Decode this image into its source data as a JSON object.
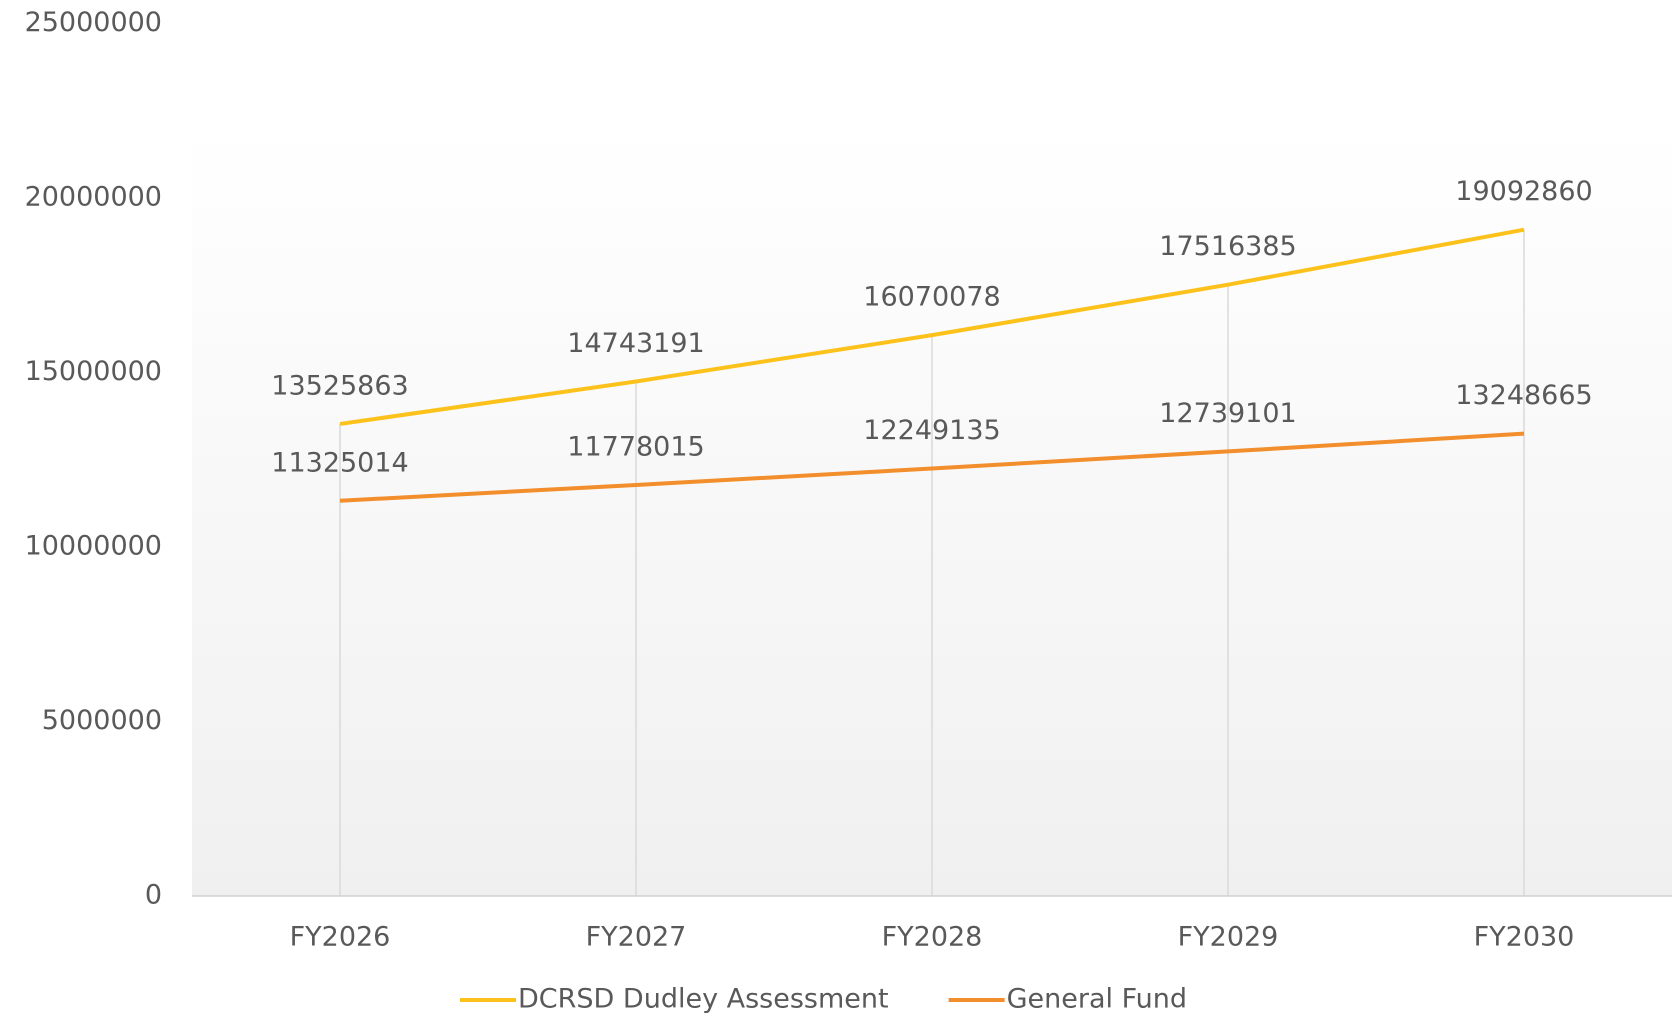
{
  "chart_data": {
    "type": "line",
    "categories": [
      "FY2026",
      "FY2027",
      "FY2028",
      "FY2029",
      "FY2030"
    ],
    "series": [
      {
        "name": "DCRSD Dudley Assessment",
        "color": "#fcc21b",
        "values": [
          13525863,
          14743191,
          16070078,
          17516385,
          19092860
        ]
      },
      {
        "name": "General Fund",
        "color": "#f28e2b",
        "values": [
          11325014,
          11778015,
          12249135,
          12739101,
          13248665
        ]
      }
    ],
    "ylim": [
      0,
      25000000
    ],
    "yticks": [
      0,
      5000000,
      10000000,
      15000000,
      20000000,
      25000000
    ],
    "legend": "bottom"
  }
}
